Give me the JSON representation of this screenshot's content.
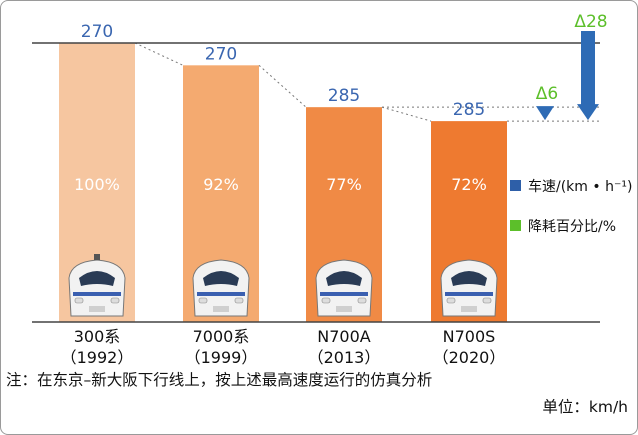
{
  "chart_data": {
    "type": "bar",
    "categories": [
      "300系",
      "7000系",
      "N700A",
      "N700S"
    ],
    "category_years": [
      "（1992）",
      "（1999）",
      "（2013）",
      "（2020）"
    ],
    "series": [
      {
        "name": "车速/(km • h⁻¹)",
        "values": [
          270,
          270,
          285,
          285
        ],
        "color": "#2e5fa8"
      },
      {
        "name": "降耗百分比/%",
        "values": [
          100,
          92,
          77,
          72
        ],
        "value_labels": [
          "100%",
          "92%",
          "77%",
          "72%"
        ],
        "color": "#5cbf2a"
      }
    ],
    "bar_colors": [
      "#f6c6a0",
      "#f4aa70",
      "#f08a45",
      "#ee7a30"
    ],
    "ylim": [
      0,
      100
    ],
    "deltas": [
      {
        "label": "Δ6",
        "value": 6
      },
      {
        "label": "Δ28",
        "value": 28
      }
    ],
    "train_icons": [
      "shinkansen-300-icon",
      "shinkansen-700-icon",
      "shinkansen-n700a-icon",
      "shinkansen-n700s-icon"
    ],
    "legend_position": "right",
    "grid": false
  },
  "note": "注：在东京–新大阪下行线上，按上述最高速度运行的仿真分析",
  "unit": "单位：km/h",
  "colors": {
    "speed_label": "#3a66b0",
    "delta_label": "#5cbf2a",
    "percent_label": "#ffffff",
    "arrow": "#2e6bb5"
  }
}
